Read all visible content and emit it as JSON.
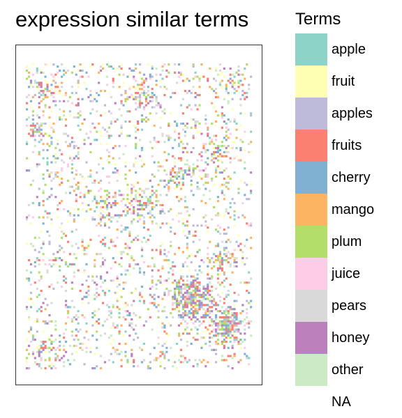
{
  "chart_data": {
    "type": "heatmap",
    "title": "expression similar terms",
    "legend_title": "Terms",
    "legend_placement": "right",
    "grid": false,
    "categories": [
      {
        "name": "apple",
        "color": "#8DD3C7"
      },
      {
        "name": "fruit",
        "color": "#FFFFB3"
      },
      {
        "name": "apples",
        "color": "#BEBADA"
      },
      {
        "name": "fruits",
        "color": "#FB8072"
      },
      {
        "name": "cherry",
        "color": "#80B1D3"
      },
      {
        "name": "mango",
        "color": "#FDB462"
      },
      {
        "name": "plum",
        "color": "#B3DE69"
      },
      {
        "name": "juice",
        "color": "#FCCDE5"
      },
      {
        "name": "pears",
        "color": "#D9D9D9"
      },
      {
        "name": "honey",
        "color": "#BC80BD"
      },
      {
        "name": "other",
        "color": "#CCEBC5"
      },
      {
        "name": "NA",
        "color": "#FFFFFF"
      }
    ],
    "grid_size": {
      "columns": 110,
      "rows": 150
    },
    "density": 0.12,
    "clusters": [
      {
        "col": 97,
        "row": 128,
        "weight": 3.5,
        "spread": 7
      },
      {
        "col": 80,
        "row": 115,
        "weight": 3.0,
        "spread": 9
      },
      {
        "col": 95,
        "row": 97,
        "weight": 2.2,
        "spread": 5
      },
      {
        "col": 5,
        "row": 33,
        "weight": 2.0,
        "spread": 4
      },
      {
        "col": 57,
        "row": 68,
        "weight": 2.0,
        "spread": 6
      },
      {
        "col": 75,
        "row": 55,
        "weight": 1.8,
        "spread": 6
      },
      {
        "col": 40,
        "row": 70,
        "weight": 1.6,
        "spread": 6
      },
      {
        "col": 58,
        "row": 15,
        "weight": 1.5,
        "spread": 7
      },
      {
        "col": 100,
        "row": 10,
        "weight": 1.4,
        "spread": 5
      },
      {
        "col": 8,
        "row": 12,
        "weight": 1.2,
        "spread": 6
      },
      {
        "col": 92,
        "row": 42,
        "weight": 1.3,
        "spread": 6
      },
      {
        "col": 10,
        "row": 140,
        "weight": 1.4,
        "spread": 6
      }
    ]
  }
}
